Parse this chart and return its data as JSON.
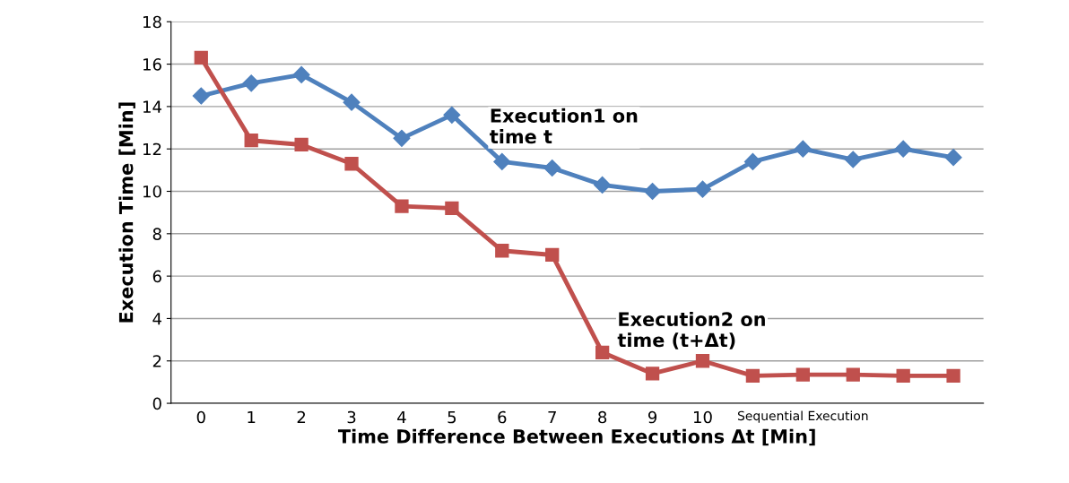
{
  "chart_data": {
    "type": "line",
    "xlabel": "Time Difference Between Executions Δt [Min]",
    "ylabel": "Execution Time [Min]",
    "categories": [
      "0",
      "1",
      "2",
      "3",
      "4",
      "5",
      "6",
      "7",
      "8",
      "9",
      "10",
      null,
      "Sequential Execution",
      null,
      null,
      null
    ],
    "series": [
      {
        "name": "Execution1 on\ntime t",
        "color": "#4f81bd",
        "marker": "diamond",
        "values": [
          14.5,
          15.1,
          15.5,
          14.2,
          12.5,
          13.6,
          11.4,
          11.1,
          10.3,
          10.0,
          10.1,
          11.4,
          12.0,
          11.5,
          12.0,
          11.6
        ]
      },
      {
        "name": "Execution2 on\ntime (t+Δt)",
        "color": "#c0504d",
        "marker": "square",
        "values": [
          16.3,
          12.4,
          12.2,
          11.3,
          9.3,
          9.2,
          7.2,
          7.0,
          2.4,
          1.4,
          2.0,
          1.3,
          1.35,
          1.35,
          1.3,
          1.3
        ]
      }
    ],
    "ylim": [
      0,
      18
    ],
    "yticks": [
      0,
      2,
      4,
      6,
      8,
      10,
      12,
      14,
      16,
      18
    ],
    "grid": "y",
    "legend": false,
    "line_style": "solid"
  }
}
